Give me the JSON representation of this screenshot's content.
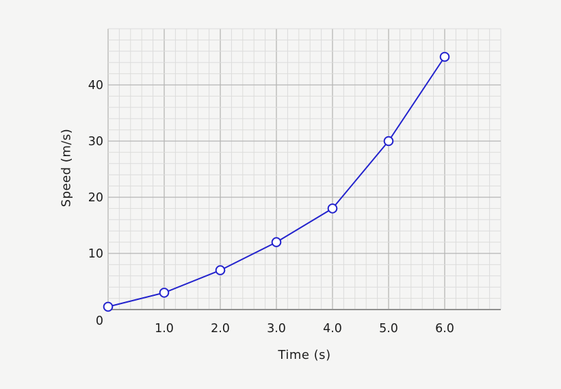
{
  "chart_data": {
    "type": "line",
    "title": "",
    "xlabel": "Time (s)",
    "ylabel": "Speed (m/s)",
    "x": [
      0,
      1,
      2,
      3,
      4,
      5,
      6
    ],
    "series": [
      {
        "name": "speed",
        "values": [
          0.5,
          3,
          7,
          12,
          18,
          30,
          45
        ]
      }
    ],
    "xlim": [
      0,
      7
    ],
    "ylim": [
      0,
      50
    ],
    "x_tick_values": [
      1,
      2,
      3,
      4,
      5,
      6
    ],
    "x_tick_labels": [
      "1.0",
      "2.0",
      "3.0",
      "4.0",
      "5.0",
      "6.0"
    ],
    "y_tick_values": [
      10,
      20,
      30,
      40
    ],
    "y_tick_labels": [
      "10",
      "20",
      "30",
      "40"
    ],
    "origin_label": "0",
    "grid": {
      "visible": true,
      "minor_x_step": 0.2,
      "minor_y_step": 2,
      "major_x_step": 1,
      "major_y_step": 10
    },
    "legend": {
      "visible": false
    },
    "marker": "open-circle",
    "colors": {
      "line": "#2323cd",
      "marker_fill": "#ffffff",
      "background": "#f5f5f4",
      "grid_minor": "#dcdcdb",
      "grid_major": "#b5b5b4",
      "axis": "#8f8f8e",
      "text": "#1c1c1c"
    }
  }
}
